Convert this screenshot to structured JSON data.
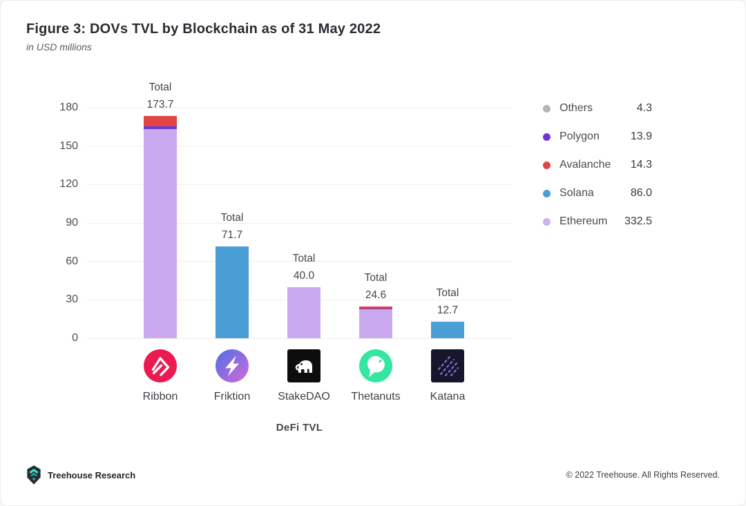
{
  "header": {
    "title": "Figure 3: DOVs TVL by Blockchain as of 31 May 2022",
    "subtitle": "in USD millions"
  },
  "chart_data": {
    "type": "bar",
    "stacked": true,
    "title": "Figure 3: DOVs TVL by Blockchain as of 31 May 2022",
    "subtitle": "in USD millions",
    "xlabel": "DeFi TVL",
    "ylabel": "",
    "ylim": [
      0,
      180
    ],
    "yticks": [
      0,
      30,
      60,
      90,
      120,
      150,
      180
    ],
    "grid": true,
    "legend_position": "right",
    "categories": [
      "Ribbon",
      "Friktion",
      "StakeDAO",
      "Thetanuts",
      "Katana"
    ],
    "totals": [
      173.7,
      71.7,
      40.0,
      24.6,
      12.7
    ],
    "totals_display": [
      "173.7",
      "71.7",
      "40.0",
      "24.6",
      "12.7"
    ],
    "total_label": "Total",
    "series": [
      {
        "name": "Ethereum",
        "color": "#c9aaf0",
        "values": [
          163.2,
          0,
          40.0,
          22.6,
          0
        ]
      },
      {
        "name": "Polygon",
        "color": "#6d38d6",
        "values": [
          2.0,
          0,
          0,
          0.8,
          0
        ]
      },
      {
        "name": "Avalanche",
        "color": "#e14545",
        "values": [
          8.5,
          0,
          0,
          1.2,
          0
        ]
      },
      {
        "name": "Solana",
        "color": "#4a9ed6",
        "values": [
          0,
          71.7,
          0,
          0,
          12.7
        ]
      }
    ],
    "legend": [
      {
        "label": "Others",
        "value": "4.3",
        "color": "#b4b4b8"
      },
      {
        "label": "Polygon",
        "value": "13.9",
        "color": "#6d38d6"
      },
      {
        "label": "Avalanche",
        "value": "14.3",
        "color": "#e14545"
      },
      {
        "label": "Solana",
        "value": "86.0",
        "color": "#4a9ed6"
      },
      {
        "label": "Ethereum",
        "value": "332.5",
        "color": "#ccb3f4"
      }
    ],
    "protocol_logos": [
      "ribbon-logo",
      "friktion-logo",
      "stakedao-logo",
      "thetanuts-logo",
      "katana-logo"
    ]
  },
  "footer": {
    "brand": "Treehouse Research",
    "copyright": "© 2022 Treehouse. All Rights Reserved.",
    "logo": "treehouse-logo"
  }
}
